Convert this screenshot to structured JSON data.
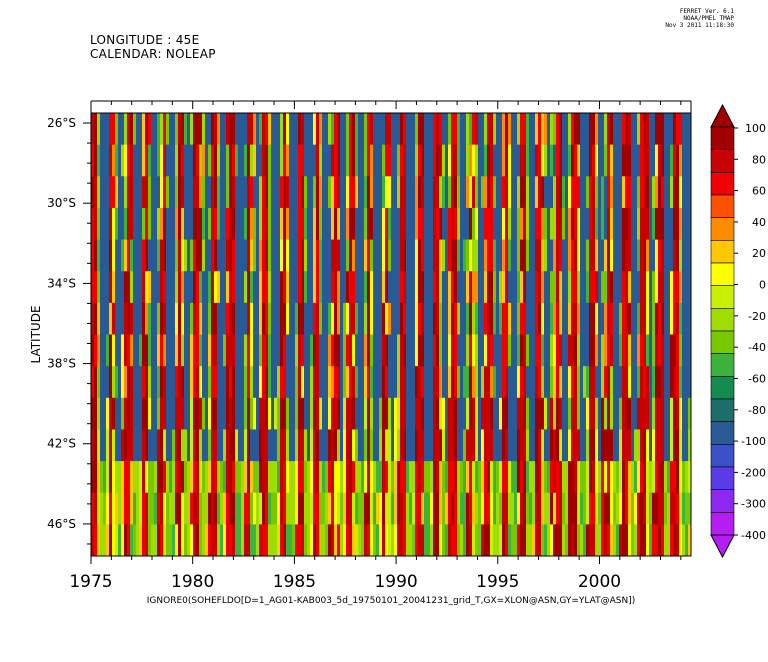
{
  "header": {
    "line1": "LONGITUDE : 45E",
    "line2": "CALENDAR: NOLEAP"
  },
  "stamp": {
    "line1": "FERRET Ver. 6.1",
    "line2": "NOAA/PMEL TMAP",
    "line3": "Nov  3 2011 11:18:30"
  },
  "chart_data": {
    "type": "heatmap",
    "title": "",
    "xlabel": "IGNORE0(SOHEFLDO[D=1_AG01-KAB003_5d_19750101_20041231_grid_T,GX=XLON@ASN,GY=YLAT@ASN])",
    "ylabel": "LATITUDE",
    "x_ticks": [
      "1975",
      "1980",
      "1985",
      "1990",
      "1995",
      "2000"
    ],
    "x_tick_values": [
      1975,
      1980,
      1985,
      1990,
      1995,
      2000
    ],
    "xlim": [
      1975,
      2004.5
    ],
    "y_ticks": [
      "26°S",
      "30°S",
      "34°S",
      "38°S",
      "42°S",
      "46°S"
    ],
    "y_tick_values": [
      -26,
      -30,
      -34,
      -38,
      -42,
      -46
    ],
    "ylim": [
      -47.6,
      -25.5
    ],
    "colorbar": {
      "levels": [
        "100",
        "80",
        "60",
        "40",
        "20",
        "0",
        "-20",
        "-40",
        "-60",
        "-80",
        "-100",
        "-200",
        "-300",
        "-400"
      ],
      "colors": [
        "#a00000",
        "#c80000",
        "#f00000",
        "#ff5000",
        "#ff8c00",
        "#ffc800",
        "#ffff00",
        "#c8f000",
        "#a0dc00",
        "#78c800",
        "#3cb43c",
        "#148c50",
        "#1e6e6e",
        "#285a96",
        "#3c50c8",
        "#5a3ce6",
        "#8c28f0",
        "#b41ef0"
      ]
    }
  }
}
